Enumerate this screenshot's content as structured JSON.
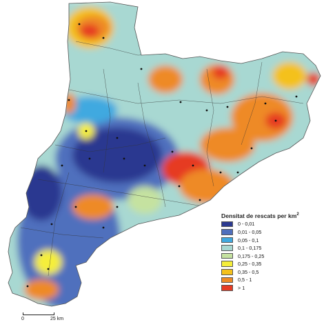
{
  "legend": {
    "title": "Densitat de rescats per km",
    "title_sup": "2",
    "classes": [
      {
        "label": "0 - 0,01",
        "color": "#2b3990"
      },
      {
        "label": "0,01 - 0,05",
        "color": "#4f6fbd"
      },
      {
        "label": "0,05 - 0,1",
        "color": "#3fa9e0"
      },
      {
        "label": "0,1 - 0,175",
        "color": "#a8d8d2"
      },
      {
        "label": "0,175 - 0,25",
        "color": "#c5e2a0"
      },
      {
        "label": "0,25 - 0,35",
        "color": "#f5ee3a"
      },
      {
        "label": "0,35 - 0,5",
        "color": "#f4c11c"
      },
      {
        "label": "0,5 - 1",
        "color": "#ee8a25"
      },
      {
        "label": "> 1",
        "color": "#e63b24"
      }
    ]
  },
  "scale": {
    "start_label": "0",
    "end_label": "25 km"
  }
}
